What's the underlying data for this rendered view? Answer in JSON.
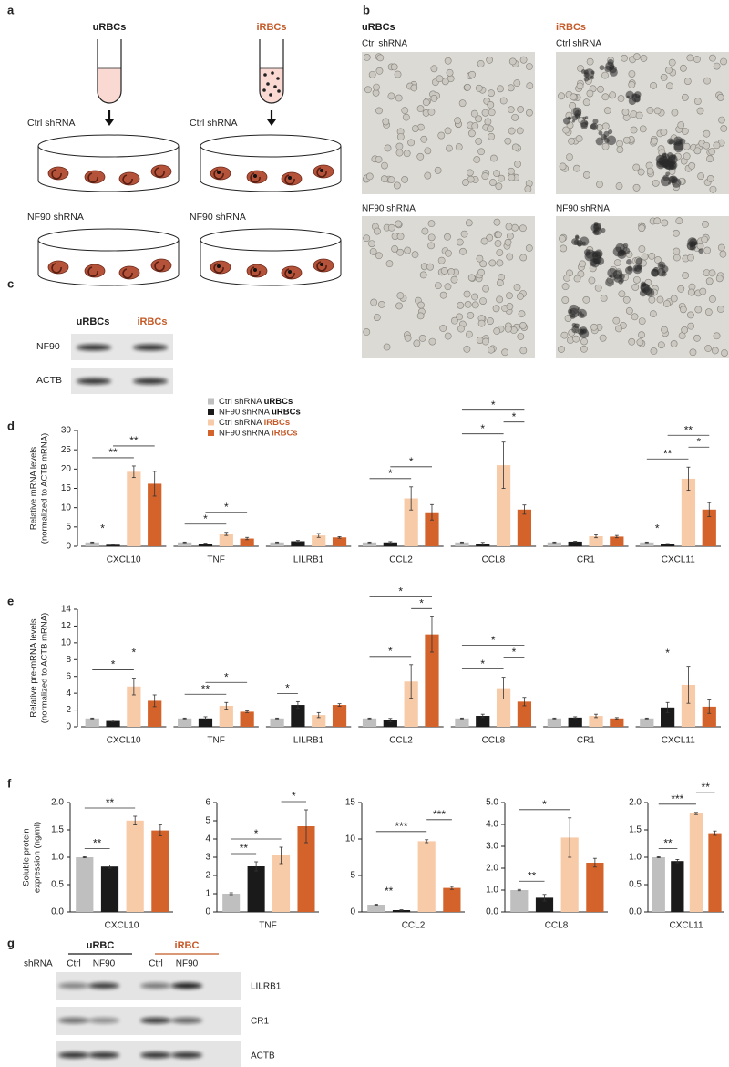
{
  "panel_labels": [
    "a",
    "b",
    "c",
    "d",
    "e",
    "f",
    "g"
  ],
  "schematic": {
    "columns": [
      {
        "title": "uRBCs",
        "color": "#1a1a1a",
        "rows": [
          "Ctrl shRNA",
          "NF90 shRNA"
        ]
      },
      {
        "title": "iRBCs",
        "color": "#c55a28",
        "rows": [
          "Ctrl shRNA",
          "NF90 shRNA"
        ]
      }
    ]
  },
  "micrographs": {
    "columns": [
      {
        "title": "uRBCs",
        "color": "#1a1a1a",
        "rows": [
          "Ctrl shRNA",
          "NF90 shRNA"
        ]
      },
      {
        "title": "iRBCs",
        "color": "#c55a28",
        "rows": [
          "Ctrl shRNA",
          "NF90 shRNA"
        ]
      }
    ]
  },
  "blot_c": {
    "columns": [
      {
        "text": "uRBCs",
        "color": "#1a1a1a"
      },
      {
        "text": "iRBCs",
        "color": "#c55a28"
      }
    ],
    "rows": [
      "NF90",
      "ACTB"
    ]
  },
  "blot_g": {
    "groups": [
      {
        "text": "uRBC",
        "color": "#1a1a1a"
      },
      {
        "text": "iRBC",
        "color": "#c55a28"
      }
    ],
    "row_header": "shRNA",
    "lanes": [
      "Ctrl",
      "NF90",
      "Ctrl",
      "NF90"
    ],
    "rows": [
      "LILRB1",
      "CR1",
      "ACTB"
    ]
  },
  "chart_data": [
    {
      "type": "bar",
      "ylabel": [
        "Relative mRNA levels",
        "(normalized to ACTB mRNA)"
      ],
      "legend": true,
      "categories": [
        "CXCL10",
        "TNF",
        "LILRB1",
        "CCL2",
        "CCL8",
        "CR1",
        "CXCL11"
      ],
      "ylim": [
        0,
        30
      ],
      "yticks": [
        0,
        5,
        10,
        15,
        20,
        25,
        30
      ],
      "series": [
        {
          "name": "Ctrl shRNA uRBCs",
          "color": "#bfbfbf",
          "values": [
            1,
            1,
            1,
            1,
            1,
            1,
            1
          ],
          "errors": [
            0.1,
            0.1,
            0.1,
            0.1,
            0.1,
            0.1,
            0.1
          ]
        },
        {
          "name": "NF90 shRNA uRBCs",
          "color": "#1a1a1a",
          "values": [
            0.4,
            0.7,
            1.3,
            1.0,
            0.7,
            1.2,
            0.6
          ],
          "errors": [
            0.1,
            0.1,
            0.2,
            0.2,
            0.3,
            0.1,
            0.1
          ]
        },
        {
          "name": "Ctrl shRNA iRBCs",
          "color": "#f8cba8",
          "values": [
            19.3,
            3.2,
            2.8,
            12.4,
            21.0,
            2.6,
            17.5
          ],
          "errors": [
            1.5,
            0.4,
            0.5,
            3.0,
            6.0,
            0.4,
            3.0
          ]
        },
        {
          "name": "NF90 shRNA iRBCs",
          "color": "#d4632b",
          "values": [
            16.2,
            2.0,
            2.3,
            8.8,
            9.5,
            2.5,
            9.5
          ],
          "errors": [
            3.2,
            0.3,
            0.2,
            2.0,
            1.2,
            0.3,
            1.8
          ]
        }
      ],
      "significance": [
        {
          "category": 0,
          "pair": [
            0,
            1
          ],
          "label": "*"
        },
        {
          "category": 0,
          "pair": [
            0,
            2
          ],
          "label": "**"
        },
        {
          "category": 0,
          "pair": [
            1,
            3
          ],
          "label": "**"
        },
        {
          "category": 1,
          "pair": [
            0,
            2
          ],
          "label": "*"
        },
        {
          "category": 1,
          "pair": [
            1,
            3
          ],
          "label": "*"
        },
        {
          "category": 3,
          "pair": [
            0,
            2
          ],
          "label": "*"
        },
        {
          "category": 3,
          "pair": [
            1,
            3
          ],
          "label": "*"
        },
        {
          "category": 4,
          "pair": [
            0,
            2
          ],
          "label": "*"
        },
        {
          "category": 4,
          "pair": [
            2,
            3
          ],
          "label": "*"
        },
        {
          "category": 4,
          "pair": [
            0,
            3
          ],
          "label": "*"
        },
        {
          "category": 6,
          "pair": [
            0,
            1
          ],
          "label": "*"
        },
        {
          "category": 6,
          "pair": [
            0,
            2
          ],
          "label": "**"
        },
        {
          "category": 6,
          "pair": [
            2,
            3
          ],
          "label": "*"
        },
        {
          "category": 6,
          "pair": [
            1,
            3
          ],
          "label": "**"
        }
      ]
    },
    {
      "type": "bar",
      "ylabel": [
        "Relative pre-mRNA levels",
        "(normalized to ACTB mRNA)"
      ],
      "categories": [
        "CXCL10",
        "TNF",
        "LILRB1",
        "CCL2",
        "CCL8",
        "CR1",
        "CXCL11"
      ],
      "ylim": [
        0,
        14
      ],
      "yticks": [
        0,
        2,
        4,
        6,
        8,
        10,
        12,
        14
      ],
      "series": [
        {
          "color": "#bfbfbf",
          "values": [
            1,
            1,
            1,
            1,
            1,
            1,
            1
          ],
          "errors": [
            0.05,
            0.05,
            0.05,
            0.05,
            0.05,
            0.05,
            0.05
          ]
        },
        {
          "color": "#1a1a1a",
          "values": [
            0.7,
            1.0,
            2.6,
            0.8,
            1.3,
            1.1,
            2.3
          ],
          "errors": [
            0.1,
            0.2,
            0.4,
            0.2,
            0.2,
            0.1,
            0.6
          ]
        },
        {
          "color": "#f8cba8",
          "values": [
            4.8,
            2.5,
            1.4,
            5.4,
            4.6,
            1.3,
            5.0
          ],
          "errors": [
            1.0,
            0.4,
            0.3,
            2.0,
            1.3,
            0.2,
            2.2
          ]
        },
        {
          "color": "#d4632b",
          "values": [
            3.1,
            1.8,
            2.6,
            11.0,
            3.0,
            1.0,
            2.4
          ],
          "errors": [
            0.7,
            0.1,
            0.15,
            2.1,
            0.5,
            0.1,
            0.8
          ]
        }
      ],
      "significance": [
        {
          "category": 0,
          "pair": [
            0,
            2
          ],
          "label": "*"
        },
        {
          "category": 0,
          "pair": [
            1,
            3
          ],
          "label": "*"
        },
        {
          "category": 1,
          "pair": [
            0,
            2
          ],
          "label": "**"
        },
        {
          "category": 1,
          "pair": [
            1,
            3
          ],
          "label": "*"
        },
        {
          "category": 2,
          "pair": [
            0,
            1
          ],
          "label": "*"
        },
        {
          "category": 3,
          "pair": [
            0,
            2
          ],
          "label": "*"
        },
        {
          "category": 3,
          "pair": [
            2,
            3
          ],
          "label": "*"
        },
        {
          "category": 3,
          "pair": [
            0,
            3
          ],
          "label": "*"
        },
        {
          "category": 4,
          "pair": [
            0,
            2
          ],
          "label": "*"
        },
        {
          "category": 4,
          "pair": [
            2,
            3
          ],
          "label": "*"
        },
        {
          "category": 4,
          "pair": [
            0,
            3
          ],
          "label": "*"
        },
        {
          "category": 6,
          "pair": [
            0,
            2
          ],
          "label": "*"
        }
      ]
    },
    {
      "type": "bar",
      "ylabel": [
        "Soluble protein",
        "expression (ng/ml)"
      ],
      "x_label": "CXCL10",
      "ylim": [
        0,
        2
      ],
      "yticks": [
        {
          "value": 0,
          "label": "0.0"
        },
        0.5,
        {
          "value": 1,
          "label": "1.0"
        },
        1.5,
        {
          "value": 2,
          "label": "2.0"
        }
      ],
      "colors": [
        "#bfbfbf",
        "#1a1a1a",
        "#f8cba8",
        "#d4632b"
      ],
      "values": [
        1.0,
        0.83,
        1.67,
        1.49
      ],
      "errors": [
        0.01,
        0.03,
        0.08,
        0.1
      ],
      "significance": [
        {
          "pair": [
            0,
            1
          ],
          "label": "**"
        },
        {
          "pair": [
            0,
            2
          ],
          "label": "**"
        }
      ]
    },
    {
      "type": "bar",
      "x_label": "TNF",
      "ylim": [
        0,
        6
      ],
      "yticks": [
        0,
        1,
        2,
        3,
        4,
        5,
        6
      ],
      "colors": [
        "#bfbfbf",
        "#1a1a1a",
        "#f8cba8",
        "#d4632b"
      ],
      "values": [
        1.0,
        2.5,
        3.1,
        4.7
      ],
      "errors": [
        0.05,
        0.25,
        0.45,
        0.9
      ],
      "significance": [
        {
          "pair": [
            0,
            1
          ],
          "label": "**"
        },
        {
          "pair": [
            0,
            2
          ],
          "label": "*"
        },
        {
          "pair": [
            2,
            3
          ],
          "label": "*"
        }
      ]
    },
    {
      "type": "bar",
      "x_label": "CCL2",
      "ylim": [
        0,
        15
      ],
      "yticks": [
        0,
        5,
        10,
        15
      ],
      "colors": [
        "#bfbfbf",
        "#1a1a1a",
        "#f8cba8",
        "#d4632b"
      ],
      "values": [
        1.0,
        0.25,
        9.7,
        3.3
      ],
      "errors": [
        0.05,
        0.05,
        0.2,
        0.2
      ],
      "significance": [
        {
          "pair": [
            0,
            1
          ],
          "label": "**"
        },
        {
          "pair": [
            0,
            2
          ],
          "label": "***"
        },
        {
          "pair": [
            2,
            3
          ],
          "label": "***"
        }
      ]
    },
    {
      "type": "bar",
      "x_label": "CCL8",
      "ylim": [
        0,
        5
      ],
      "yticks": [
        {
          "value": 0,
          "label": "0.0"
        },
        {
          "value": 1,
          "label": "1.0"
        },
        {
          "value": 2,
          "label": "2.0"
        },
        {
          "value": 3,
          "label": "3.0"
        },
        {
          "value": 4,
          "label": "4.0"
        },
        {
          "value": 5,
          "label": "5.0"
        }
      ],
      "colors": [
        "#bfbfbf",
        "#1a1a1a",
        "#f8cba8",
        "#d4632b"
      ],
      "values": [
        1.0,
        0.65,
        3.4,
        2.25
      ],
      "errors": [
        0.03,
        0.15,
        0.9,
        0.2
      ],
      "significance": [
        {
          "pair": [
            0,
            1
          ],
          "label": "**"
        },
        {
          "pair": [
            0,
            2
          ],
          "label": "*"
        }
      ]
    },
    {
      "type": "bar",
      "x_label": "CXCL11",
      "ylim": [
        0,
        2
      ],
      "yticks": [
        {
          "value": 0,
          "label": "0.0"
        },
        0.5,
        {
          "value": 1,
          "label": "1.0"
        },
        1.5,
        {
          "value": 2,
          "label": "2.0"
        }
      ],
      "colors": [
        "#bfbfbf",
        "#1a1a1a",
        "#f8cba8",
        "#d4632b"
      ],
      "values": [
        1.0,
        0.93,
        1.8,
        1.44
      ],
      "errors": [
        0.01,
        0.03,
        0.02,
        0.04
      ],
      "significance": [
        {
          "pair": [
            0,
            1
          ],
          "label": "**"
        },
        {
          "pair": [
            0,
            2
          ],
          "label": "***"
        },
        {
          "pair": [
            2,
            3
          ],
          "label": "**"
        }
      ]
    }
  ]
}
